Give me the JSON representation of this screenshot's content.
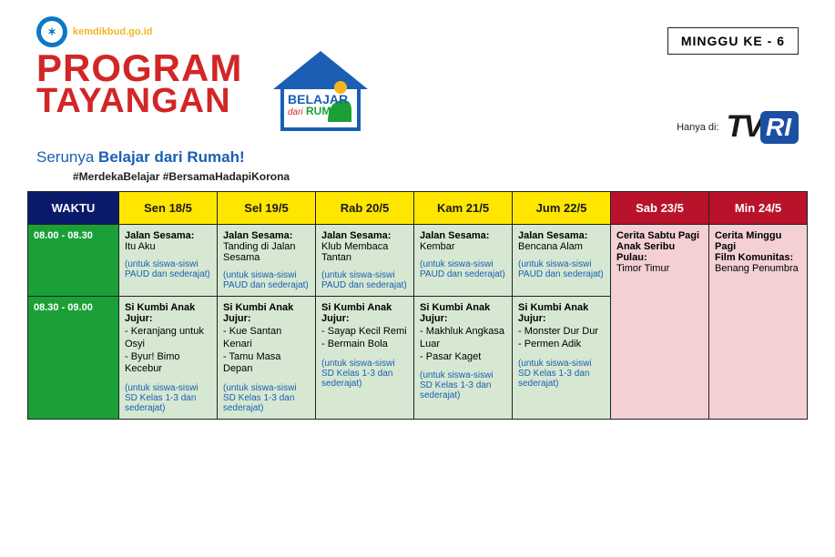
{
  "header": {
    "badge_text": "kemdikbud.go.id",
    "program_line1": "PROGRAM",
    "program_line2": "TAYANGAN",
    "house_label_top": "BELAJAR",
    "house_label_mid": "dari",
    "house_label_bot": "RUMAH",
    "tagline_plain": "Serunya ",
    "tagline_bold": "Belajar dari Rumah!",
    "hashtags": "#MerdekaBelajar #BersamaHadapiKorona",
    "week_badge": "MINGGU KE - 6",
    "hanya_di": "Hanya di:",
    "tvri_tv": "TV",
    "tvri_ri": "RI"
  },
  "colors": {
    "navy": "#0a1a6b",
    "yellow": "#ffe600",
    "darkred": "#b8132b",
    "green": "#1aa037",
    "lightgreen": "#d6e8d2",
    "lightpink": "#f4d0d4",
    "blue_text": "#1a5fb4",
    "logo_red": "#d22626"
  },
  "table": {
    "columns": [
      {
        "key": "waktu",
        "label": "WAKTU",
        "type": "time"
      },
      {
        "key": "sen",
        "label": "Sen 18/5",
        "type": "weekday"
      },
      {
        "key": "sel",
        "label": "Sel 19/5",
        "type": "weekday"
      },
      {
        "key": "rab",
        "label": "Rab 20/5",
        "type": "weekday"
      },
      {
        "key": "kam",
        "label": "Kam 21/5",
        "type": "weekday"
      },
      {
        "key": "jum",
        "label": "Jum 22/5",
        "type": "weekday"
      },
      {
        "key": "sab",
        "label": "Sab 23/5",
        "type": "weekend"
      },
      {
        "key": "min",
        "label": "Min 24/5",
        "type": "weekend"
      }
    ],
    "rows": [
      {
        "time": "08.00 - 08.30",
        "cells": [
          {
            "type": "weekday",
            "title": "Jalan Sesama:",
            "subtitle": "Itu Aku",
            "items": [],
            "note": "(untuk siswa-siswi PAUD dan sederajat)"
          },
          {
            "type": "weekday",
            "title": "Jalan Sesama:",
            "subtitle": "Tanding di Jalan Sesama",
            "items": [],
            "note": "(untuk siswa-siswi PAUD dan sederajat)"
          },
          {
            "type": "weekday",
            "title": "Jalan Sesama:",
            "subtitle": "Klub Membaca Tantan",
            "items": [],
            "note": "(untuk siswa-siswi PAUD dan sederajat)"
          },
          {
            "type": "weekday",
            "title": "Jalan Sesama:",
            "subtitle": "Kembar",
            "items": [],
            "note": "(untuk siswa-siswi PAUD dan sederajat)"
          },
          {
            "type": "weekday",
            "title": "Jalan Sesama:",
            "subtitle": "Bencana Alam",
            "items": [],
            "note": "(untuk siswa-siswi PAUD dan sederajat)"
          },
          {
            "type": "weekend",
            "title": "Cerita Sabtu Pagi Anak Seribu Pulau:",
            "subtitle": "Timor Timur",
            "items": [],
            "note": "",
            "rowspan": 2
          },
          {
            "type": "weekend",
            "title": "Cerita Minggu Pagi",
            "subtitle": "",
            "title2": "Film Komunitas:",
            "subtitle2": "Benang Penumbra",
            "items": [],
            "note": "",
            "rowspan": 2
          }
        ]
      },
      {
        "time": "08.30 - 09.00",
        "cells": [
          {
            "type": "weekday",
            "title": "Si Kumbi Anak Jujur:",
            "subtitle": "",
            "items": [
              "Keranjang untuk Osyi",
              "Byur! Bimo Kecebur"
            ],
            "note": "(untuk siswa-siswi SD Kelas 1-3 dan sederajat)"
          },
          {
            "type": "weekday",
            "title": "Si Kumbi Anak Jujur:",
            "subtitle": "",
            "items": [
              "Kue Santan Kenari",
              "Tamu Masa Depan"
            ],
            "note": "(untuk siswa-siswi SD Kelas 1-3 dan sederajat)"
          },
          {
            "type": "weekday",
            "title": "Si Kumbi Anak Jujur:",
            "subtitle": "",
            "items": [
              "Sayap Kecil Remi",
              "Bermain Bola"
            ],
            "note": "(untuk siswa-siswi SD Kelas 1-3 dan sederajat)"
          },
          {
            "type": "weekday",
            "title": "Si Kumbi Anak Jujur:",
            "subtitle": "",
            "items": [
              "Makhluk Angkasa Luar",
              "Pasar Kaget"
            ],
            "note": "(untuk siswa-siswi SD Kelas 1-3 dan sederajat)"
          },
          {
            "type": "weekday",
            "title": "Si Kumbi Anak Jujur:",
            "subtitle": "",
            "items": [
              "Monster Dur Dur",
              "Permen Adik"
            ],
            "note": "(untuk siswa-siswi SD Kelas 1-3 dan sederajat)"
          }
        ]
      }
    ]
  }
}
